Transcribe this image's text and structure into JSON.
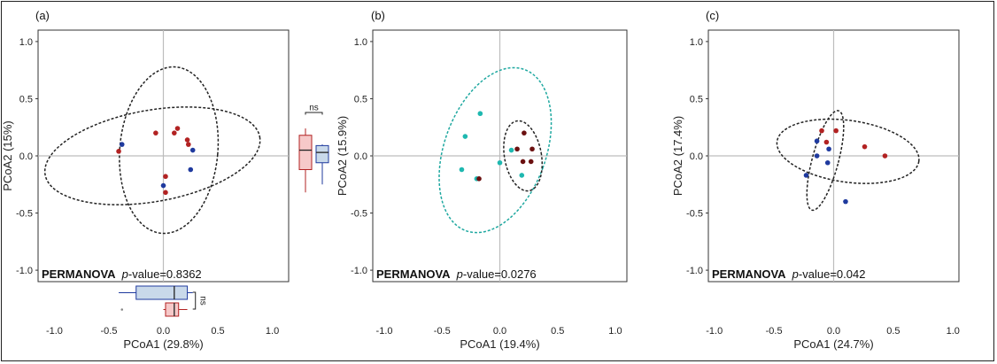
{
  "colors": {
    "red": "#b22222",
    "darkred": "#6b1010",
    "blue": "#1f3a9e",
    "teal": "#1fb8b0",
    "pink_fill": "#f6c9c9",
    "lightblue_fill": "#c9d9ea",
    "teal_fill": "#bff0ee",
    "lavender_fill": "#c9cdf2",
    "axis": "#bdbdbd",
    "ellipse_dark": "#222222",
    "ellipse_teal": "#1fa8a0"
  },
  "chart_data": [
    {
      "type": "scatter",
      "panel_label": "(a)",
      "xlabel": "PCoA1 (29.8%)",
      "ylabel": "PCoA2 (15%)",
      "xlim": [
        -1.15,
        1.15
      ],
      "ylim": [
        -1.1,
        1.1
      ],
      "xticks": [
        "-1.0",
        "-0.5",
        "0.0",
        "0.5",
        "1.0"
      ],
      "yticks": [
        "-1.0",
        "-0.5",
        "0.0",
        "0.5",
        "1.0"
      ],
      "permanova_label": "PERMANOVA",
      "pvalue_prefix": "p",
      "pvalue_text": "-value=0.8362",
      "series": [
        {
          "color": "red",
          "points": [
            [
              -0.41,
              0.04
            ],
            [
              0.1,
              0.2
            ],
            [
              0.13,
              0.24
            ],
            [
              0.22,
              0.14
            ],
            [
              0.23,
              0.1
            ],
            [
              0.02,
              -0.18
            ],
            [
              0.02,
              -0.32
            ],
            [
              -0.07,
              0.2
            ]
          ]
        },
        {
          "color": "blue",
          "points": [
            [
              -0.38,
              0.1
            ],
            [
              0.27,
              0.05
            ],
            [
              0.25,
              -0.12
            ],
            [
              0.0,
              -0.26
            ]
          ]
        }
      ],
      "ellipses": [
        {
          "color": "ellipse_dark",
          "cx": -0.1,
          "cy": 0.0,
          "rx": 1.0,
          "ry": 0.4,
          "angle": 10
        },
        {
          "color": "ellipse_dark",
          "cx": 0.05,
          "cy": 0.05,
          "rx": 0.45,
          "ry": 0.73,
          "angle": -5
        }
      ],
      "side_box": {
        "ns": "ns",
        "groups": [
          {
            "fill": "pink_fill",
            "stroke": "red",
            "q1": -0.12,
            "median": 0.05,
            "q3": 0.18,
            "low": -0.32,
            "high": 0.24
          },
          {
            "fill": "lightblue_fill",
            "stroke": "blue",
            "q1": -0.06,
            "median": 0.03,
            "q3": 0.09,
            "low": -0.25,
            "high": 0.1
          }
        ]
      },
      "bottom_box": {
        "ns": "ns",
        "groups": [
          {
            "fill": "lightblue_fill",
            "stroke": "blue",
            "q1": -0.25,
            "median": 0.1,
            "q3": 0.22,
            "low": -0.41,
            "high": 0.27
          },
          {
            "fill": "pink_fill",
            "stroke": "red",
            "q1": 0.02,
            "median": 0.1,
            "q3": 0.14,
            "low": 0.0,
            "high": 0.22,
            "outliers": [
              -0.38
            ]
          }
        ]
      }
    },
    {
      "type": "scatter",
      "panel_label": "(b)",
      "xlabel": "PCoA1 (19.4%)",
      "ylabel": "PCoA2 (15.9%)",
      "xlim": [
        -1.1,
        1.1
      ],
      "ylim": [
        -1.1,
        1.1
      ],
      "xticks": [
        "-1.0",
        "-0.5",
        "0.0",
        "0.5",
        "1.0"
      ],
      "yticks": [
        "-1.0",
        "-0.5",
        "0.0",
        "0.5",
        "1.0"
      ],
      "permanova_label": "PERMANOVA",
      "pvalue_prefix": "p",
      "pvalue_text": "-value=0.0276",
      "series": [
        {
          "color": "teal",
          "points": [
            [
              -0.17,
              0.37
            ],
            [
              -0.3,
              0.17
            ],
            [
              -0.33,
              -0.12
            ],
            [
              -0.2,
              -0.2
            ],
            [
              0.0,
              -0.06
            ],
            [
              0.19,
              -0.17
            ],
            [
              0.1,
              0.05
            ]
          ]
        },
        {
          "color": "darkred",
          "points": [
            [
              0.15,
              0.06
            ],
            [
              0.21,
              0.2
            ],
            [
              0.28,
              0.06
            ],
            [
              0.2,
              -0.05
            ],
            [
              0.27,
              -0.05
            ],
            [
              -0.18,
              -0.2
            ]
          ]
        }
      ],
      "ellipses": [
        {
          "color": "ellipse_teal",
          "cx": -0.04,
          "cy": 0.05,
          "rx": 0.44,
          "ry": 0.75,
          "angle": -20
        },
        {
          "color": "ellipse_dark",
          "cx": 0.2,
          "cy": 0.0,
          "rx": 0.16,
          "ry": 0.31,
          "angle": 10
        }
      ]
    },
    {
      "type": "scatter",
      "panel_label": "(c)",
      "xlabel": "PCoA1 (24.7%)",
      "ylabel": "PCoA2 (17.4%)",
      "xlim": [
        -1.05,
        1.05
      ],
      "ylim": [
        -1.1,
        1.1
      ],
      "xticks": [
        "-1.0",
        "-0.5",
        "0.0",
        "0.5",
        "1.0"
      ],
      "yticks": [
        "-1.0",
        "-0.5",
        "0.0",
        "0.5",
        "1.0"
      ],
      "permanova_label": "PERMANOVA",
      "pvalue_prefix": "p",
      "pvalue_text": "-value=0.042",
      "series": [
        {
          "color": "red",
          "points": [
            [
              -0.1,
              0.22
            ],
            [
              -0.06,
              0.12
            ],
            [
              0.02,
              0.22
            ],
            [
              0.26,
              0.08
            ],
            [
              0.43,
              0.0
            ]
          ]
        },
        {
          "color": "blue",
          "points": [
            [
              -0.14,
              0.13
            ],
            [
              -0.04,
              0.06
            ],
            [
              -0.14,
              0.0
            ],
            [
              -0.05,
              -0.06
            ],
            [
              -0.23,
              -0.17
            ],
            [
              0.1,
              -0.4
            ]
          ]
        }
      ],
      "ellipses": [
        {
          "color": "ellipse_dark",
          "cx": 0.12,
          "cy": 0.04,
          "rx": 0.6,
          "ry": 0.27,
          "angle": -8
        },
        {
          "color": "ellipse_dark",
          "cx": -0.07,
          "cy": -0.04,
          "rx": 0.11,
          "ry": 0.45,
          "angle": -15
        }
      ]
    }
  ]
}
